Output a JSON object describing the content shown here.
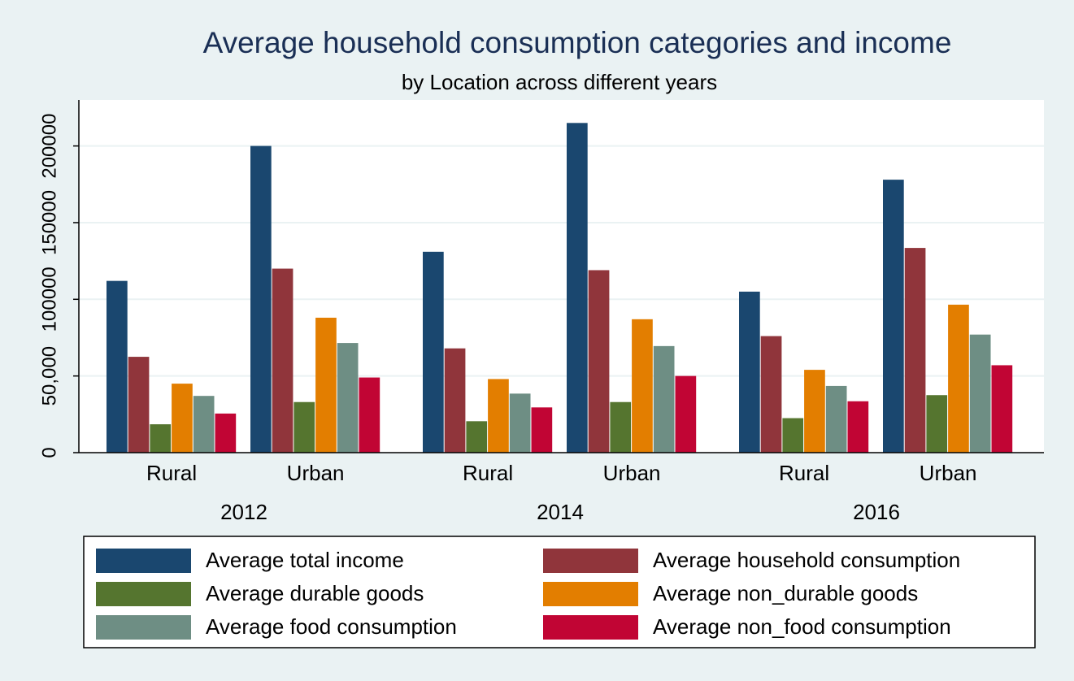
{
  "chart_data": {
    "type": "bar",
    "title": "Average household consumption categories and income",
    "subtitle": "by Location across different years",
    "groups": [
      "2012",
      "2014",
      "2016"
    ],
    "categories": [
      "Rural",
      "Urban",
      "Rural",
      "Urban",
      "Rural",
      "Urban"
    ],
    "series": [
      {
        "name": "Average total income",
        "color": "#1a476f",
        "values": [
          112000,
          200000,
          131000,
          215000,
          105000,
          178000
        ]
      },
      {
        "name": "Average household consumption",
        "color": "#90353b",
        "values": [
          62500,
          120000,
          68000,
          119000,
          76000,
          133500
        ]
      },
      {
        "name": "Average durable goods",
        "color": "#55752f",
        "values": [
          18500,
          33000,
          20500,
          33000,
          22500,
          37500
        ]
      },
      {
        "name": "Average non_durable goods",
        "color": "#e37e00",
        "values": [
          45000,
          88000,
          48000,
          87000,
          54000,
          96500
        ]
      },
      {
        "name": "Average food consumption",
        "color": "#6e8e84",
        "values": [
          37000,
          71500,
          38500,
          69500,
          43500,
          77000
        ]
      },
      {
        "name": "Average non_food consumption",
        "color": "#c10534",
        "values": [
          25500,
          49000,
          29500,
          50000,
          33500,
          57000
        ]
      }
    ],
    "ylim": [
      0,
      230000
    ],
    "yticks": [
      0,
      {
        "value": 50000,
        "label": "50,000"
      },
      100000,
      150000,
      200000
    ],
    "grid": true
  }
}
